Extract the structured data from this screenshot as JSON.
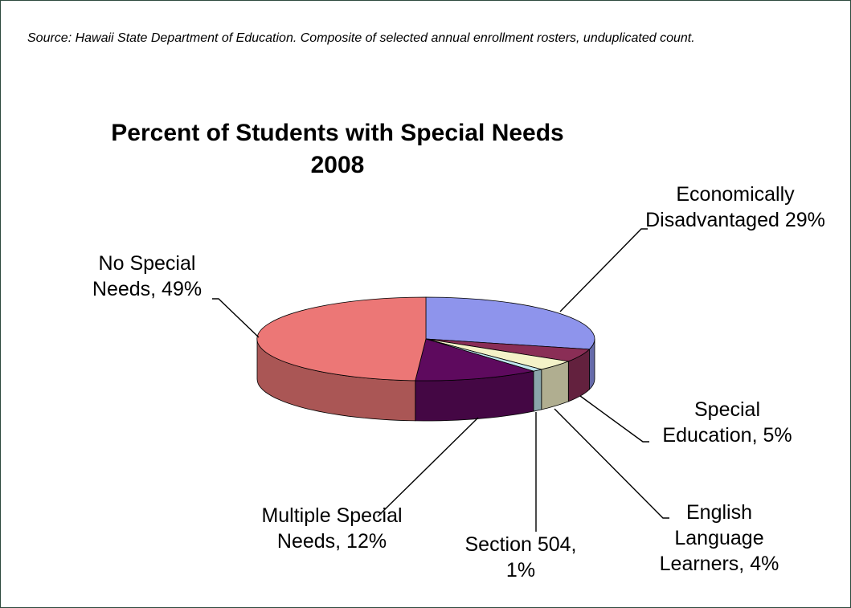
{
  "source_note": "Source: Hawaii State Department of Education. Composite of selected annual enrollment rosters, unduplicated count.",
  "chart_data": {
    "type": "pie",
    "title": "Percent of Students with Special Needs",
    "subtitle": "2008",
    "style": "3d-exploded-none",
    "slices": [
      {
        "name": "Economically Disadvantaged",
        "value": 29,
        "label": "Economically Disadvantaged 29%",
        "color": "#8e94ec"
      },
      {
        "name": "Special Education",
        "value": 5,
        "label": "Special Education, 5%",
        "color": "#8a2e56"
      },
      {
        "name": "English Language Learners",
        "value": 4,
        "label": "English Language Learners, 4%",
        "color": "#f4f2c8"
      },
      {
        "name": "Section 504",
        "value": 1,
        "label": "Section 504, 1%",
        "color": "#bfe6ee"
      },
      {
        "name": "Multiple Special Needs",
        "value": 12,
        "label": "Multiple Special Needs, 12%",
        "color": "#5e0a5e"
      },
      {
        "name": "No Special Needs",
        "value": 49,
        "label": "No Special Needs, 49%",
        "color": "#ec7776"
      }
    ]
  }
}
